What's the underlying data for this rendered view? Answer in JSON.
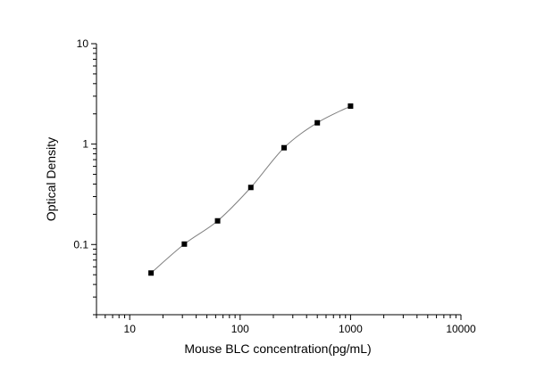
{
  "chart_data": {
    "type": "scatter",
    "title": "",
    "xlabel": "Mouse BLC concentration(pg/mL)",
    "ylabel": "Optical Density",
    "xscale": "log",
    "yscale": "log",
    "xlim": [
      5,
      10000
    ],
    "ylim": [
      0.02,
      10
    ],
    "xticks": [
      10,
      100,
      1000,
      10000
    ],
    "xtick_labels": [
      "10",
      "100",
      "1000",
      "10000"
    ],
    "yticks": [
      0.1,
      1,
      10
    ],
    "ytick_labels": [
      "0.1",
      "1",
      "10"
    ],
    "grid": false,
    "marker": "square",
    "fit_curve": true,
    "colors": {
      "points": "#000000",
      "curve": "#7f7f7f",
      "axes": "#000000"
    },
    "series": [
      {
        "x": [
          15.6,
          31.25,
          62.5,
          125,
          250,
          500,
          1000
        ],
        "y": [
          0.052,
          0.101,
          0.172,
          0.37,
          0.92,
          1.63,
          2.39
        ]
      }
    ]
  }
}
